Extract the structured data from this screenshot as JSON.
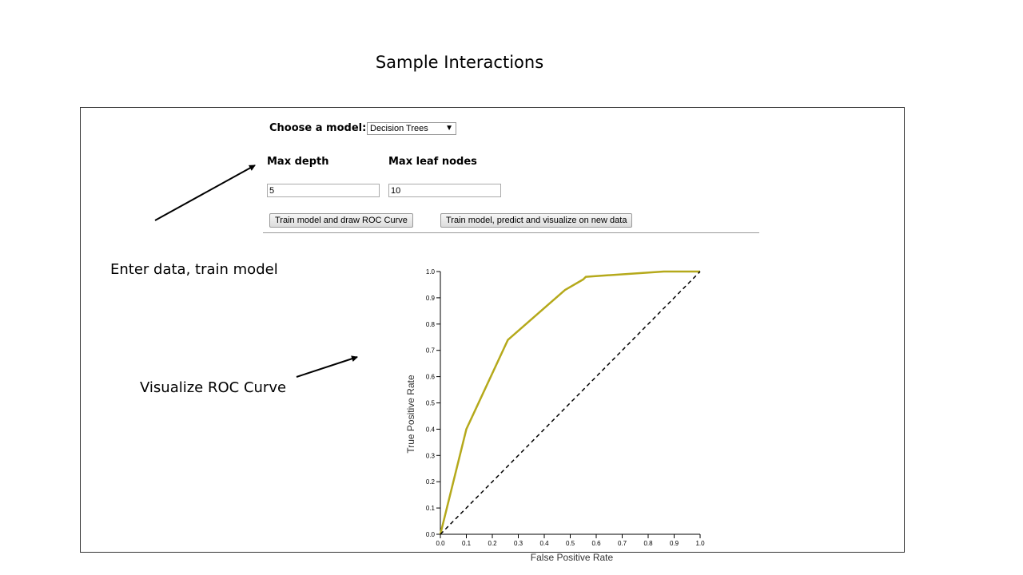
{
  "slide": {
    "title": "Sample Interactions"
  },
  "annotations": {
    "enter_data": "Enter data, train model",
    "visualize": "Visualize ROC Curve"
  },
  "form": {
    "model_label": "Choose a model:",
    "model_value": "Decision Trees",
    "max_depth_label": "Max depth",
    "max_depth_value": "5",
    "max_leaf_label": "Max leaf nodes",
    "max_leaf_value": "10",
    "train_button": "Train model and draw ROC Curve",
    "predict_button": "Train model, predict and visualize on new data"
  },
  "colors": {
    "roc_curve": "#b5a91b",
    "baseline": "#000000"
  },
  "chart_data": {
    "type": "line",
    "xlabel": "False Positive Rate",
    "ylabel": "True Positive Rate",
    "xlim": [
      0,
      1
    ],
    "ylim": [
      0,
      1
    ],
    "x_ticks": [
      "0.0",
      "0.1",
      "0.2",
      "0.3",
      "0.4",
      "0.5",
      "0.6",
      "0.7",
      "0.8",
      "0.9",
      "1.0"
    ],
    "y_ticks": [
      "0.0",
      "0.1",
      "0.2",
      "0.3",
      "0.4",
      "0.5",
      "0.6",
      "0.7",
      "0.8",
      "0.9",
      "1.0"
    ],
    "grid": false,
    "series": [
      {
        "style": "solid",
        "x": [
          0.0,
          0.1,
          0.26,
          0.48,
          0.55,
          0.56,
          0.86,
          1.0
        ],
        "y": [
          0.0,
          0.4,
          0.74,
          0.93,
          0.97,
          0.98,
          1.0,
          1.0
        ]
      },
      {
        "style": "dashed",
        "x": [
          0.0,
          1.0
        ],
        "y": [
          0.0,
          1.0
        ]
      }
    ]
  }
}
